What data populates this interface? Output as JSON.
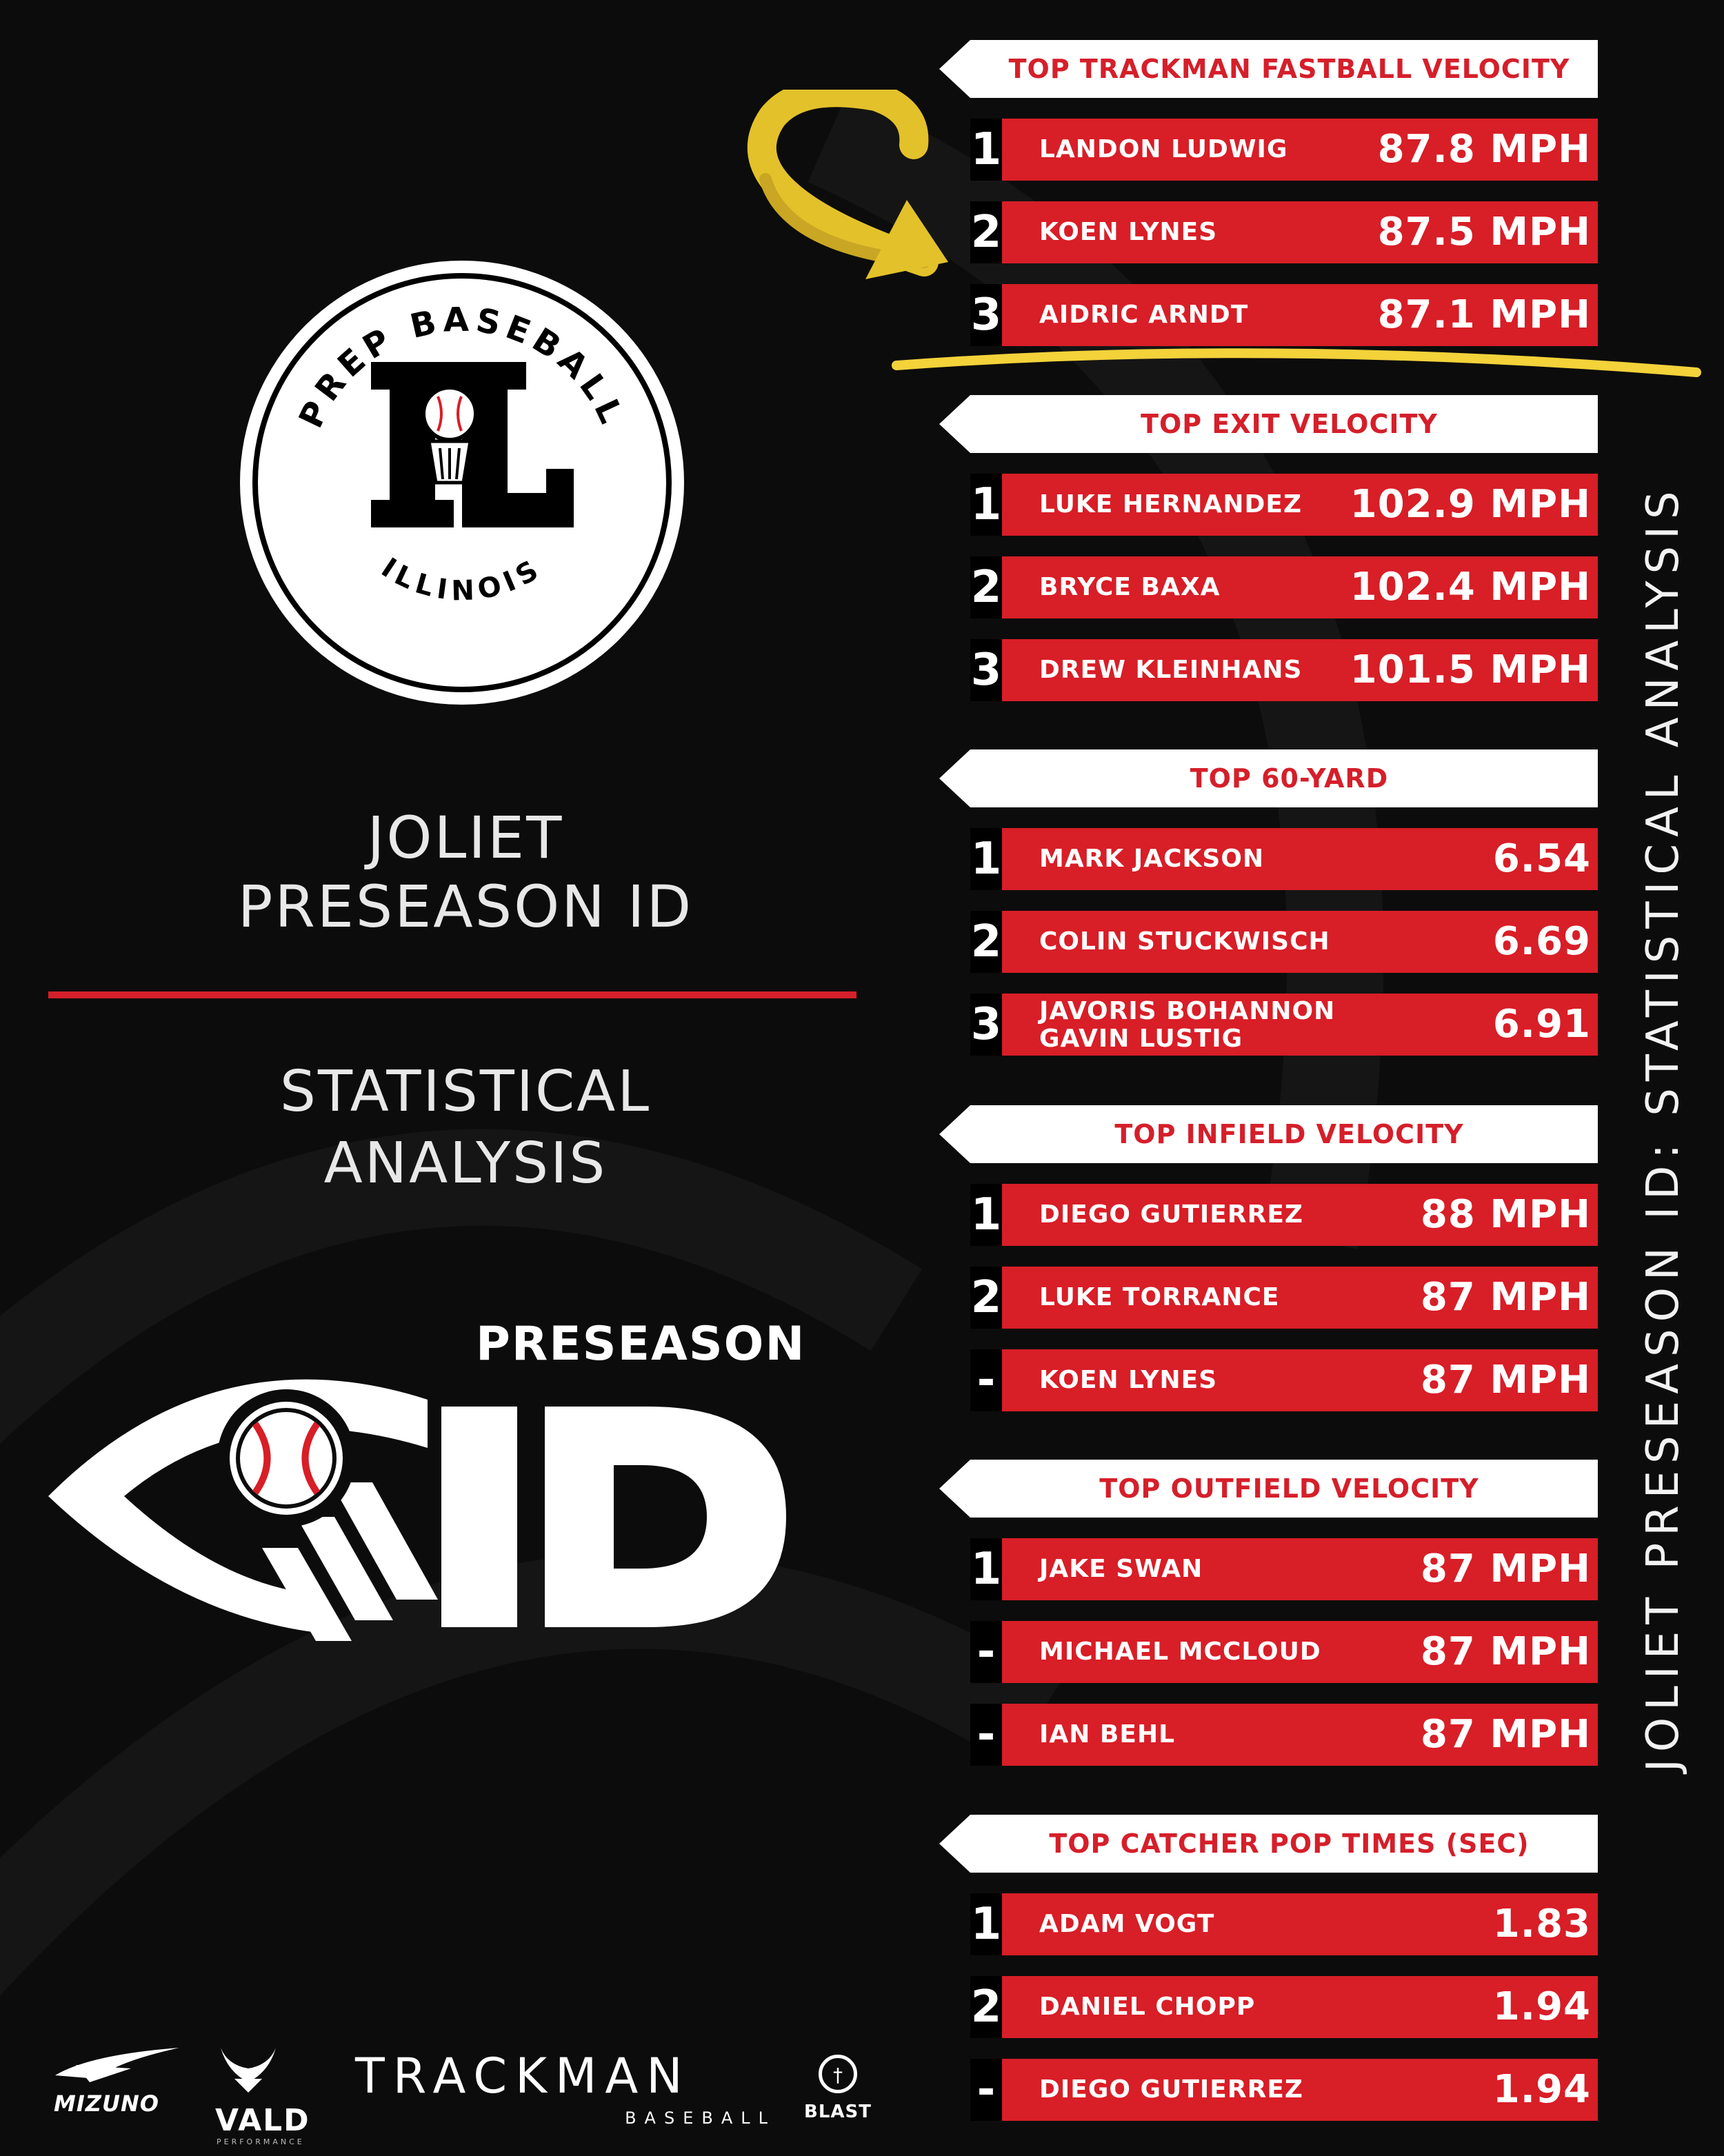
{
  "logo": {
    "top_text": "PREP BASEBALL",
    "monogram": "IL",
    "bottom_text": "ILLINOIS"
  },
  "event": {
    "title_line1": "JOLIET",
    "title_line2": "PRESEASON ID",
    "subtitle_line1": "STATISTICAL",
    "subtitle_line2": "ANALYSIS"
  },
  "id_logo": {
    "word": "PRESEASON",
    "letters": "ID"
  },
  "sponsors": {
    "mizuno": "MIZUNO",
    "vald": "VALD",
    "vald_sub": "PERFORMANCE",
    "trackman": "TRACKMAN",
    "trackman_sub": "BASEBALL",
    "blast": "BLAST"
  },
  "side_title": "JOLIET PRESEASON ID: STATISTICAL ANALYSIS",
  "colors": {
    "background": "#0c0c0c",
    "accent_red": "#d81e27",
    "annotation_gold": "#e3c12a",
    "white": "#ffffff"
  },
  "sections": [
    {
      "title": "TOP TRACKMAN FASTBALL VELOCITY",
      "rows": [
        {
          "rank": "1",
          "name": "LANDON LUDWIG",
          "value": "87.8 MPH"
        },
        {
          "rank": "2",
          "name": "KOEN LYNES",
          "value": "87.5 MPH"
        },
        {
          "rank": "3",
          "name": "AIDRIC ARNDT",
          "value": "87.1 MPH"
        }
      ]
    },
    {
      "title": "TOP EXIT VELOCITY",
      "rows": [
        {
          "rank": "1",
          "name": "LUKE HERNANDEZ",
          "value": "102.9 MPH"
        },
        {
          "rank": "2",
          "name": "BRYCE BAXA",
          "value": "102.4 MPH"
        },
        {
          "rank": "3",
          "name": "DREW KLEINHANS",
          "value": "101.5 MPH"
        }
      ]
    },
    {
      "title": "TOP 60-YARD",
      "rows": [
        {
          "rank": "1",
          "name": "MARK JACKSON",
          "value": "6.54"
        },
        {
          "rank": "2",
          "name": "COLIN STUCKWISCH",
          "value": "6.69"
        },
        {
          "rank": "3",
          "name": "JAVORIS BOHANNON",
          "name2": "GAVIN LUSTIG",
          "value": "6.91"
        }
      ]
    },
    {
      "title": "TOP INFIELD VELOCITY",
      "rows": [
        {
          "rank": "1",
          "name": "DIEGO GUTIERREZ",
          "value": "88 MPH"
        },
        {
          "rank": "2",
          "name": "LUKE TORRANCE",
          "value": "87 MPH"
        },
        {
          "rank": "-",
          "name": "KOEN LYNES",
          "value": "87 MPH"
        }
      ]
    },
    {
      "title": "TOP OUTFIELD VELOCITY",
      "rows": [
        {
          "rank": "1",
          "name": "JAKE SWAN",
          "value": "87 MPH"
        },
        {
          "rank": "-",
          "name": "MICHAEL MCCLOUD",
          "value": "87 MPH"
        },
        {
          "rank": "-",
          "name": "IAN BEHL",
          "value": "87 MPH"
        }
      ]
    },
    {
      "title": "TOP CATCHER POP TIMES (SEC)",
      "rows": [
        {
          "rank": "1",
          "name": "ADAM VOGT",
          "value": "1.83"
        },
        {
          "rank": "2",
          "name": "DANIEL CHOPP",
          "value": "1.94"
        },
        {
          "rank": "-",
          "name": "DIEGO GUTIERREZ",
          "value": "1.94"
        }
      ]
    }
  ]
}
